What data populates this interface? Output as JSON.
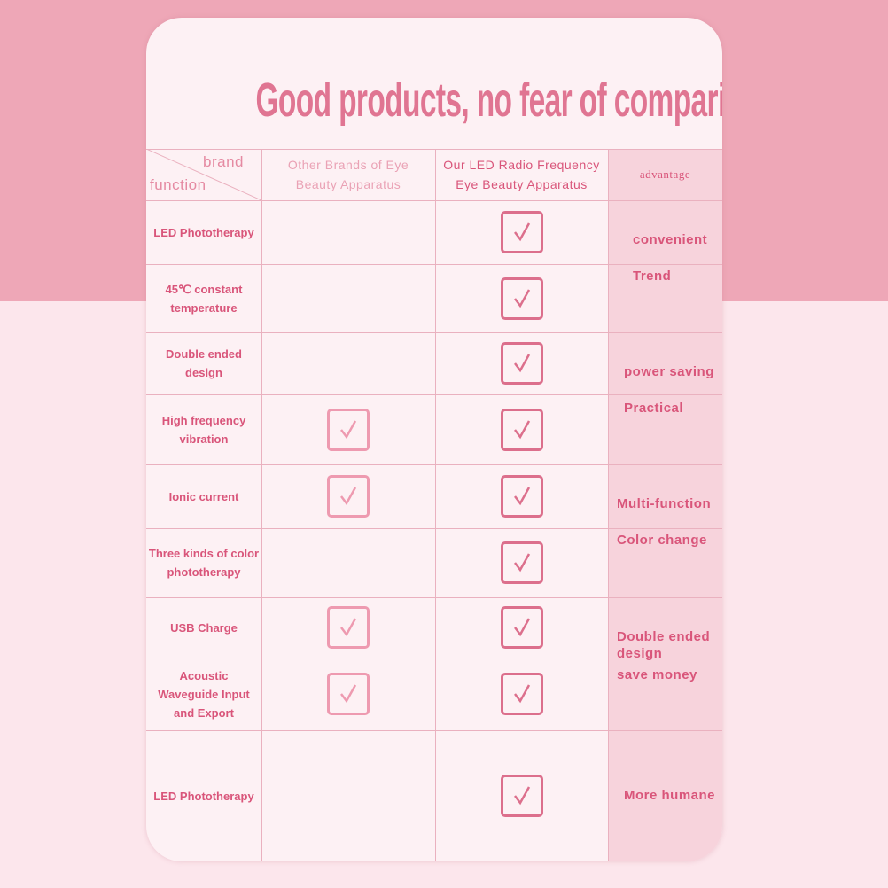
{
  "title": "Good products, no fear of comparison",
  "header": {
    "brand": "brand",
    "function": "function",
    "other": "Other Brands of Eye Beauty Apparatus",
    "ours": "Our LED Radio Frequency Eye Beauty Apparatus",
    "advantage": "advantage"
  },
  "rows": [
    {
      "feature": "LED Phototherapy",
      "other": false,
      "ours": true
    },
    {
      "feature": "45℃ constant temperature",
      "other": false,
      "ours": true
    },
    {
      "feature": "Double ended design",
      "other": false,
      "ours": true
    },
    {
      "feature": "High frequency vibration",
      "other": true,
      "ours": true
    },
    {
      "feature": "Ionic current",
      "other": true,
      "ours": true
    },
    {
      "feature": "Three kinds of color phototherapy",
      "other": false,
      "ours": true
    },
    {
      "feature": "USB Charge",
      "other": true,
      "ours": true
    },
    {
      "feature": "Acoustic Waveguide Input and Export",
      "other": true,
      "ours": true
    },
    {
      "feature": "LED Phototherapy",
      "other": false,
      "ours": true
    }
  ],
  "advantages": [
    [
      "convenient",
      "Trend"
    ],
    [
      "power saving",
      "Practical"
    ],
    [
      "Multi-function",
      "Color change"
    ],
    [
      "Double ended design",
      "save money"
    ],
    [
      "More humane"
    ]
  ]
}
